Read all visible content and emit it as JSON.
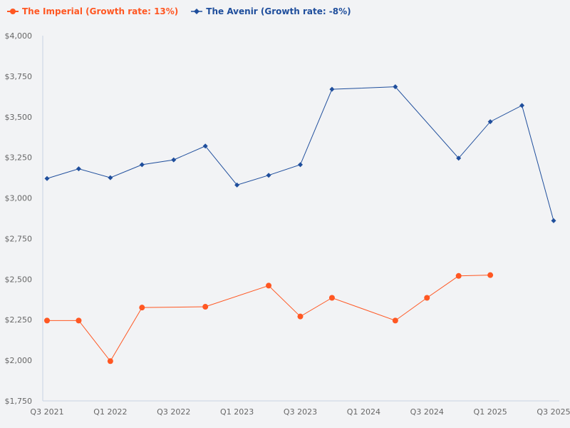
{
  "chart_data": {
    "type": "line",
    "title": "",
    "xlabel": "",
    "ylabel": "",
    "ylim": [
      1750,
      4000
    ],
    "yticks": [
      "$1,750",
      "$2,000",
      "$2,250",
      "$2,500",
      "$2,750",
      "$3,000",
      "$3,250",
      "$3,500",
      "$3,750",
      "$4,000"
    ],
    "ytick_values": [
      1750,
      2000,
      2250,
      2500,
      2750,
      3000,
      3250,
      3500,
      3750,
      4000
    ],
    "x": [
      "Q3 2021",
      "Q4 2021",
      "Q1 2022",
      "Q2 2022",
      "Q3 2022",
      "Q4 2022",
      "Q1 2023",
      "Q2 2023",
      "Q3 2023",
      "Q4 2023",
      "Q1 2024",
      "Q2 2024",
      "Q3 2024",
      "Q4 2024",
      "Q1 2025",
      "Q2 2025",
      "Q3 2025"
    ],
    "xticks": [
      "Q3 2021",
      "Q1 2022",
      "Q3 2022",
      "Q1 2023",
      "Q3 2023",
      "Q1 2024",
      "Q3 2024",
      "Q1 2025",
      "Q3 2025"
    ],
    "grid": false,
    "legend_placement": "top-left",
    "series": [
      {
        "name": "The Imperial (Growth rate: 13%)",
        "color": "#ff5722",
        "marker": "circle",
        "values": [
          2245,
          2245,
          1995,
          2325,
          null,
          2330,
          null,
          2460,
          2270,
          2385,
          null,
          2245,
          2385,
          2520,
          2525,
          null,
          null
        ]
      },
      {
        "name": "The Avenir (Growth rate: -8%)",
        "color": "#1f4e9c",
        "marker": "diamond",
        "values": [
          3120,
          3180,
          3125,
          3205,
          3235,
          3320,
          3080,
          3140,
          3205,
          3670,
          null,
          3685,
          null,
          3245,
          3470,
          3570,
          2860
        ]
      }
    ]
  }
}
